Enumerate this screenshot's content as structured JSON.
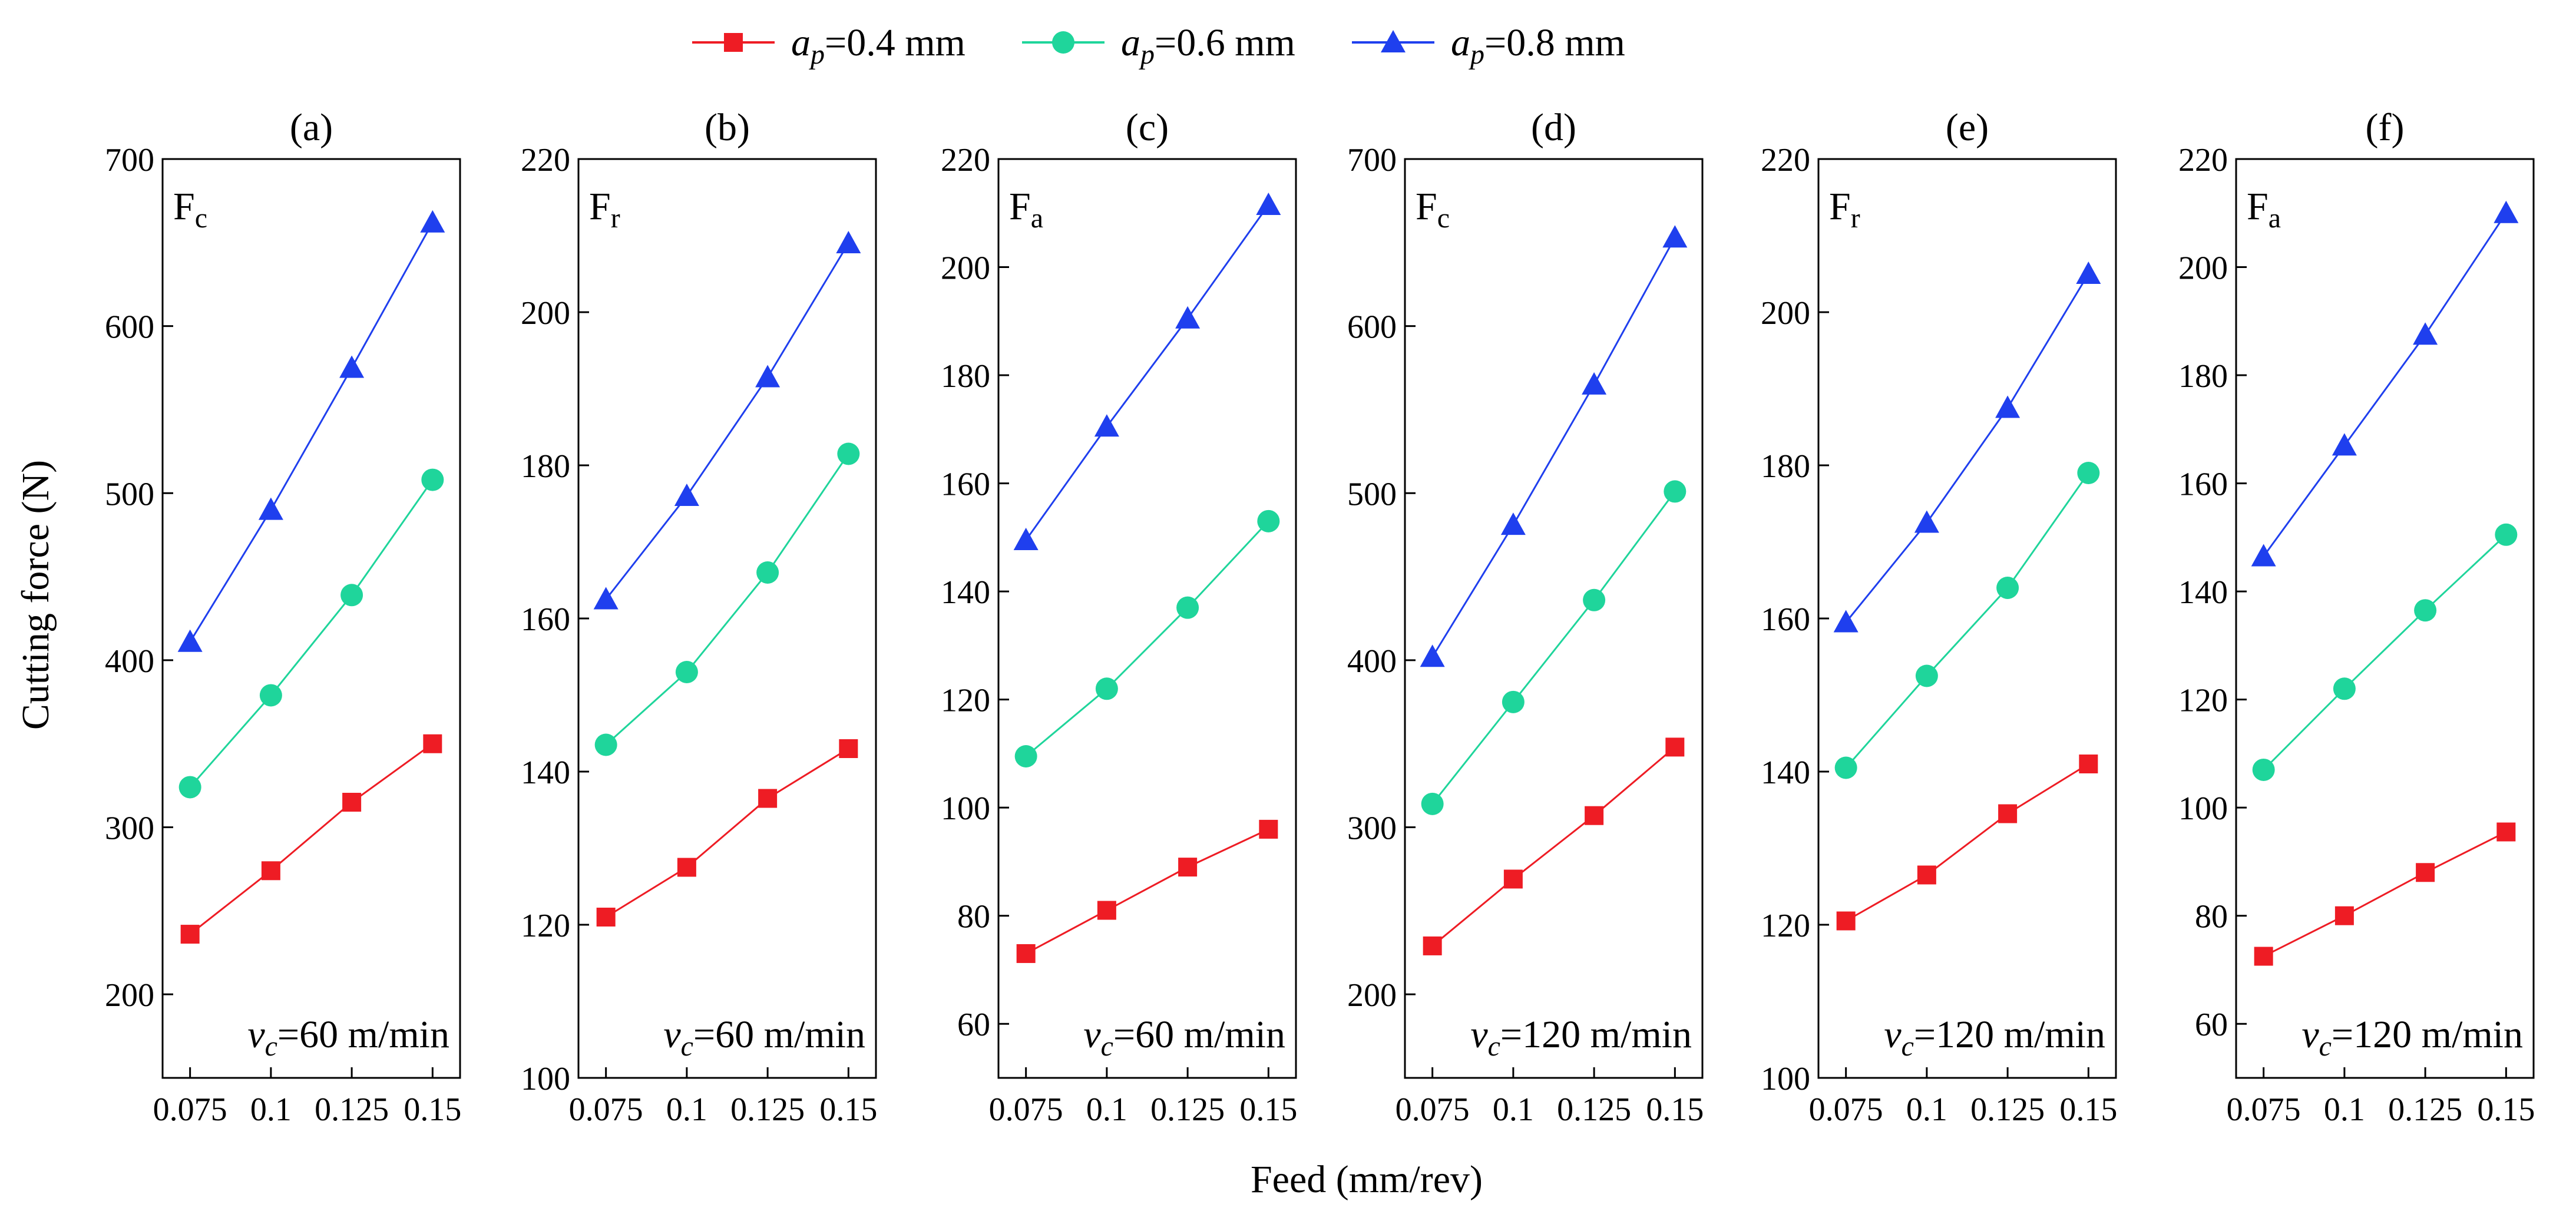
{
  "figure": {
    "ylabel": "Cutting force (N)",
    "xlabel": "Feed (mm/rev)"
  },
  "legend": [
    {
      "ap_symbol": "a",
      "ap_sub": "p",
      "text": "=0.4 mm",
      "color": "#ee1c24",
      "marker": "square"
    },
    {
      "ap_symbol": "a",
      "ap_sub": "p",
      "text": "=0.6 mm",
      "color": "#1fd59b",
      "marker": "circle"
    },
    {
      "ap_symbol": "a",
      "ap_sub": "p",
      "text": "=0.8 mm",
      "color": "#1f3fee",
      "marker": "triangle"
    }
  ],
  "chart_data": [
    {
      "type": "line",
      "title": "(a)",
      "force_main": "F",
      "force_sub": "c",
      "speed_symbol": "v",
      "speed_sub": "c",
      "speed_text": "=60 m/min",
      "categories": [
        "0.075",
        "0.1",
        "0.125",
        "0.15"
      ],
      "x": [
        0.075,
        0.1,
        0.125,
        0.15
      ],
      "ylim": [
        150,
        700
      ],
      "yticks": [
        200,
        300,
        400,
        500,
        600,
        700
      ],
      "series": [
        {
          "name": "ap=0.4 mm",
          "values": [
            236,
            274,
            315,
            350
          ]
        },
        {
          "name": "ap=0.6 mm",
          "values": [
            324,
            379,
            439,
            508
          ]
        },
        {
          "name": "ap=0.8 mm",
          "values": [
            411,
            490,
            575,
            662
          ]
        }
      ]
    },
    {
      "type": "line",
      "title": "(b)",
      "force_main": "F",
      "force_sub": "r",
      "speed_symbol": "v",
      "speed_sub": "c",
      "speed_text": "=60 m/min",
      "categories": [
        "0.075",
        "0.1",
        "0.125",
        "0.15"
      ],
      "x": [
        0.075,
        0.1,
        0.125,
        0.15
      ],
      "ylim": [
        100,
        220
      ],
      "yticks": [
        100,
        120,
        140,
        160,
        180,
        200,
        220
      ],
      "series": [
        {
          "name": "ap=0.4 mm",
          "values": [
            121,
            127.5,
            136.5,
            143
          ]
        },
        {
          "name": "ap=0.6 mm",
          "values": [
            143.5,
            153,
            166,
            181.5
          ]
        },
        {
          "name": "ap=0.8 mm",
          "values": [
            162.5,
            176,
            191.5,
            209
          ]
        }
      ]
    },
    {
      "type": "line",
      "title": "(c)",
      "force_main": "F",
      "force_sub": "a",
      "speed_symbol": "v",
      "speed_sub": "c",
      "speed_text": "=60 m/min",
      "categories": [
        "0.075",
        "0.1",
        "0.125",
        "0.15"
      ],
      "x": [
        0.075,
        0.1,
        0.125,
        0.15
      ],
      "ylim": [
        50,
        220
      ],
      "yticks": [
        60,
        80,
        100,
        120,
        140,
        160,
        180,
        200,
        220
      ],
      "series": [
        {
          "name": "ap=0.4 mm",
          "values": [
            73,
            81,
            89,
            96
          ]
        },
        {
          "name": "ap=0.6 mm",
          "values": [
            109.5,
            122,
            137,
            153
          ]
        },
        {
          "name": "ap=0.8 mm",
          "values": [
            149.5,
            170.5,
            190.5,
            211.5
          ]
        }
      ]
    },
    {
      "type": "line",
      "title": "(d)",
      "force_main": "F",
      "force_sub": "c",
      "speed_symbol": "v",
      "speed_sub": "c",
      "speed_text": "=120 m/min",
      "categories": [
        "0.075",
        "0.1",
        "0.125",
        "0.15"
      ],
      "x": [
        0.075,
        0.1,
        0.125,
        0.15
      ],
      "ylim": [
        150,
        700
      ],
      "yticks": [
        200,
        300,
        400,
        500,
        600,
        700
      ],
      "series": [
        {
          "name": "ap=0.4 mm",
          "values": [
            229,
            269,
            307,
            348
          ]
        },
        {
          "name": "ap=0.6 mm",
          "values": [
            314,
            375,
            436,
            501
          ]
        },
        {
          "name": "ap=0.8 mm",
          "values": [
            402,
            481,
            565,
            653
          ]
        }
      ]
    },
    {
      "type": "line",
      "title": "(e)",
      "force_main": "F",
      "force_sub": "r",
      "speed_symbol": "v",
      "speed_sub": "c",
      "speed_text": "=120 m/min",
      "categories": [
        "0.075",
        "0.1",
        "0.125",
        "0.15"
      ],
      "x": [
        0.075,
        0.1,
        0.125,
        0.15
      ],
      "ylim": [
        100,
        220
      ],
      "yticks": [
        100,
        120,
        140,
        160,
        180,
        200,
        220
      ],
      "series": [
        {
          "name": "ap=0.4 mm",
          "values": [
            120.5,
            126.5,
            134.5,
            141
          ]
        },
        {
          "name": "ap=0.6 mm",
          "values": [
            140.5,
            152.5,
            164,
            179
          ]
        },
        {
          "name": "ap=0.8 mm",
          "values": [
            159.5,
            172.5,
            187.5,
            205
          ]
        }
      ]
    },
    {
      "type": "line",
      "title": "(f)",
      "force_main": "F",
      "force_sub": "a",
      "speed_symbol": "v",
      "speed_sub": "c",
      "speed_text": "=120 m/min",
      "categories": [
        "0.075",
        "0.1",
        "0.125",
        "0.15"
      ],
      "x": [
        0.075,
        0.1,
        0.125,
        0.15
      ],
      "ylim": [
        50,
        220
      ],
      "yticks": [
        60,
        80,
        100,
        120,
        140,
        160,
        180,
        200,
        220
      ],
      "series": [
        {
          "name": "ap=0.4 mm",
          "values": [
            72.5,
            80,
            88,
            95.5
          ]
        },
        {
          "name": "ap=0.6 mm",
          "values": [
            107,
            122,
            136.5,
            150.5
          ]
        },
        {
          "name": "ap=0.8 mm",
          "values": [
            146.5,
            167,
            187.5,
            210
          ]
        }
      ]
    }
  ]
}
